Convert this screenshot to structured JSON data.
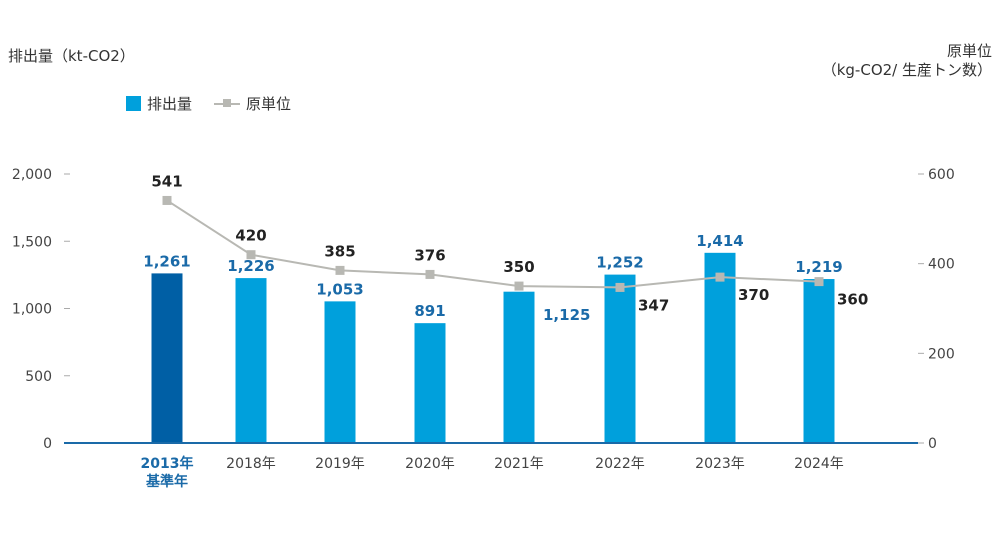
{
  "chart_data": {
    "type": "bar",
    "categories": [
      "2013年\n基準年",
      "2018年",
      "2019年",
      "2020年",
      "2021年",
      "2022年",
      "2023年",
      "2024年"
    ],
    "series": [
      {
        "name": "排出量",
        "type": "bar",
        "axis": "left",
        "values": [
          1261,
          1226,
          1053,
          891,
          1125,
          1252,
          1414,
          1219
        ],
        "labels": [
          "1,261",
          "1,226",
          "1,053",
          "891",
          "1,125",
          "1,252",
          "1,414",
          "1,219"
        ]
      },
      {
        "name": "原単位",
        "type": "line",
        "axis": "right",
        "values": [
          541,
          420,
          385,
          376,
          350,
          347,
          370,
          360
        ],
        "labels": [
          "541",
          "420",
          "385",
          "376",
          "350",
          "347",
          "370",
          "360"
        ]
      }
    ],
    "ylabel": "排出量（kt-CO2）",
    "y2label": "原単位\n（kg-CO2/ 生産トン数）",
    "ylim": [
      0,
      2000
    ],
    "y2lim": [
      0,
      600
    ],
    "yticks": [
      "0",
      "500",
      "1,000",
      "1,500",
      "2,000"
    ],
    "y2ticks": [
      "0",
      "200",
      "400",
      "600"
    ],
    "highlight_category": 0,
    "colors": {
      "bar": "#00a0dc",
      "bar_highlight": "#005fa5",
      "line": "#b8b8b3",
      "bar_label": "#1a6aa8",
      "line_label": "#222222",
      "axis": "#1a6aa8",
      "tick": "#444444"
    },
    "legend_position": "top-left"
  }
}
